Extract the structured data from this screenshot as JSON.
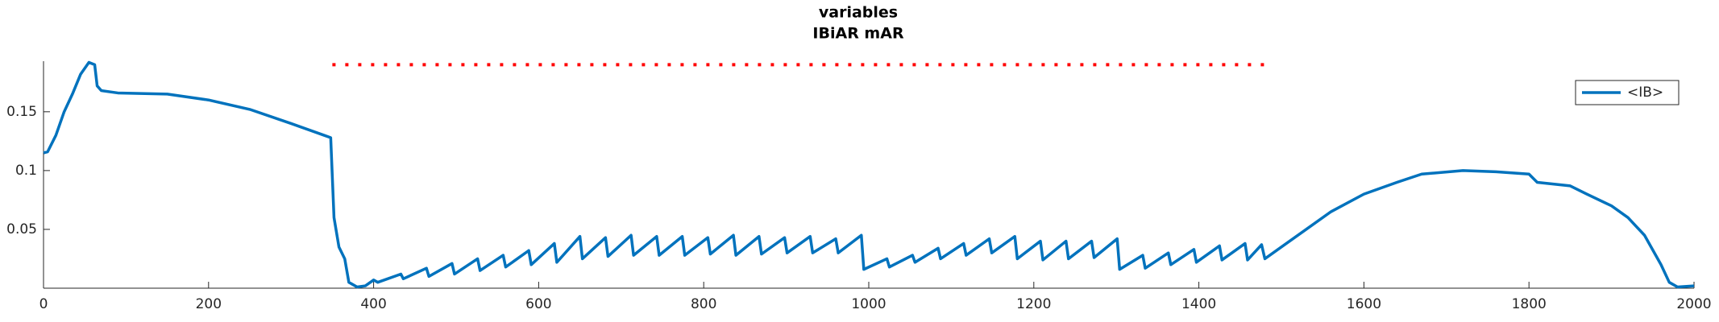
{
  "chart_data": {
    "type": "line",
    "title": "variables",
    "subtitle": "IBiAR mAR",
    "xlim": [
      0,
      2000
    ],
    "xticks": [
      0,
      200,
      400,
      600,
      800,
      1000,
      1200,
      1400,
      1600,
      1800,
      2000
    ],
    "ylim": [
      0,
      0.193
    ],
    "yticks": [
      0.05,
      0.1,
      0.15
    ],
    "legend": "top-right",
    "series": [
      {
        "name": "<IB>",
        "color": "#0072bd",
        "x": [
          0,
          5,
          15,
          25,
          35,
          45,
          55,
          62,
          65,
          70,
          90,
          150,
          200,
          250,
          300,
          340,
          348,
          352,
          358,
          365,
          370,
          380,
          390,
          400,
          405,
          433,
          436,
          464,
          467,
          495,
          498,
          526,
          529,
          557,
          560,
          588,
          591,
          619,
          622,
          650,
          653,
          681,
          684,
          712,
          715,
          743,
          746,
          774,
          777,
          805,
          808,
          836,
          839,
          867,
          870,
          898,
          901,
          929,
          932,
          960,
          963,
          991,
          994,
          1022,
          1025,
          1053,
          1056,
          1084,
          1087,
          1115,
          1118,
          1146,
          1149,
          1177,
          1180,
          1208,
          1211,
          1239,
          1242,
          1270,
          1273,
          1301,
          1304,
          1332,
          1335,
          1363,
          1366,
          1394,
          1397,
          1425,
          1428,
          1456,
          1459,
          1476,
          1480,
          1500,
          1530,
          1560,
          1600,
          1640,
          1670,
          1720,
          1760,
          1800,
          1810,
          1850,
          1870,
          1900,
          1920,
          1940,
          1960,
          1970,
          1980,
          2000
        ],
        "values": [
          0.115,
          0.116,
          0.13,
          0.15,
          0.165,
          0.182,
          0.192,
          0.19,
          0.172,
          0.168,
          0.166,
          0.165,
          0.16,
          0.152,
          0.14,
          0.13,
          0.128,
          0.06,
          0.035,
          0.025,
          0.005,
          0.001,
          0.002,
          0.007,
          0.005,
          0.012,
          0.008,
          0.017,
          0.01,
          0.021,
          0.012,
          0.025,
          0.015,
          0.028,
          0.018,
          0.032,
          0.02,
          0.038,
          0.022,
          0.044,
          0.025,
          0.043,
          0.027,
          0.045,
          0.028,
          0.044,
          0.028,
          0.044,
          0.028,
          0.043,
          0.029,
          0.045,
          0.028,
          0.044,
          0.029,
          0.043,
          0.03,
          0.044,
          0.03,
          0.042,
          0.03,
          0.045,
          0.016,
          0.025,
          0.018,
          0.028,
          0.022,
          0.034,
          0.025,
          0.038,
          0.028,
          0.042,
          0.03,
          0.044,
          0.025,
          0.04,
          0.024,
          0.04,
          0.025,
          0.04,
          0.026,
          0.042,
          0.016,
          0.028,
          0.017,
          0.03,
          0.02,
          0.033,
          0.022,
          0.036,
          0.024,
          0.038,
          0.024,
          0.037,
          0.025,
          0.035,
          0.05,
          0.065,
          0.08,
          0.09,
          0.097,
          0.1,
          0.099,
          0.097,
          0.09,
          0.087,
          0.08,
          0.07,
          0.06,
          0.045,
          0.02,
          0.005,
          0.001,
          0.002
        ]
      },
      {
        "color": "#ff0000",
        "style": "dotted",
        "x": [
          350,
          1480
        ],
        "values": [
          0.19,
          0.19
        ]
      }
    ]
  }
}
